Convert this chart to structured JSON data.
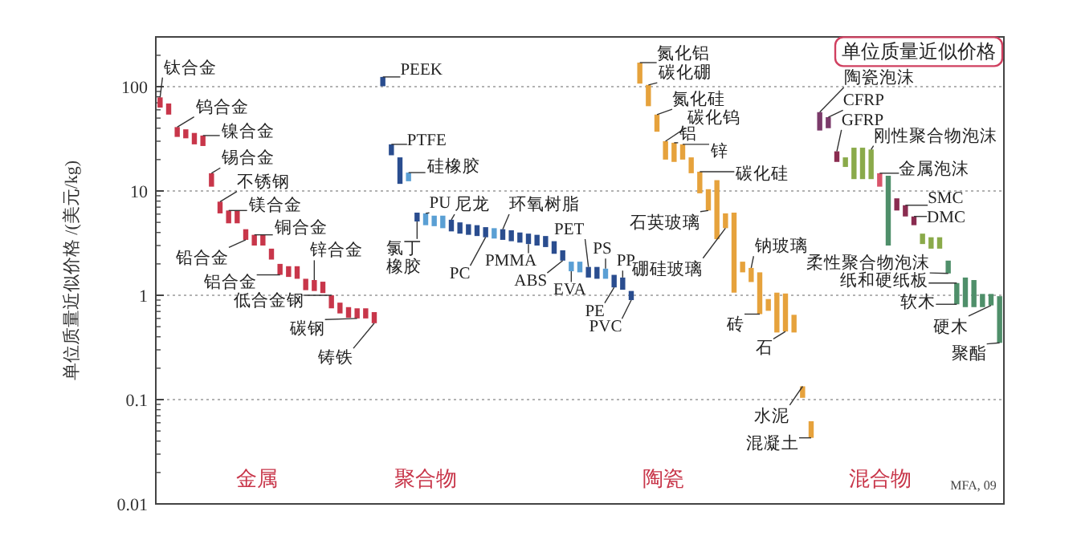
{
  "chart_data": {
    "type": "bar",
    "title": "单位质量近似价格",
    "ylabel": "单位质量近似价格 /(美元/kg)",
    "log": true,
    "ylim": [
      0.01,
      300
    ],
    "yticks": [
      0.01,
      0.1,
      1,
      10,
      100
    ],
    "tick_labels": "y",
    "grid": "y",
    "categories": [
      null,
      null,
      null,
      null,
      null,
      null,
      null,
      null,
      null,
      null,
      null,
      null,
      null,
      null,
      null,
      null,
      null,
      null,
      null,
      null,
      null,
      null,
      null,
      null,
      null,
      null,
      null,
      null,
      null,
      null,
      null,
      null,
      null,
      null,
      null,
      null,
      null,
      null,
      null,
      null,
      null,
      null,
      null,
      null,
      null,
      null,
      null,
      null,
      null,
      null,
      null,
      null,
      null,
      null,
      null,
      null,
      null,
      null,
      null,
      null,
      null,
      null,
      null,
      null,
      null,
      null,
      null,
      null,
      null,
      null,
      null,
      null,
      null,
      null,
      null,
      null,
      null,
      null,
      null,
      null,
      null,
      null,
      null,
      null,
      null,
      null,
      null,
      null,
      null,
      null,
      null,
      null,
      null,
      null,
      null,
      null,
      null,
      null,
      null
    ],
    "base": [
      63,
      54,
      33,
      32,
      28,
      27,
      11,
      6.1,
      4.9,
      4.9,
      3.4,
      3.0,
      3.0,
      2.2,
      1.57,
      1.5,
      1.44,
      1.12,
      1.1,
      1.05,
      0.75,
      0.67,
      0.61,
      0.6,
      0.6,
      0.54,
      101,
      22,
      11.7,
      12.4,
      5.1,
      4.7,
      4.6,
      4.4,
      4.1,
      3.9,
      3.8,
      3.7,
      3.6,
      3.5,
      3.4,
      3.3,
      3.2,
      3.1,
      3.0,
      2.9,
      2.5,
      2.15,
      1.7,
      1.66,
      1.48,
      1.44,
      1.44,
      1.19,
      1.13,
      0.9,
      107,
      65,
      37,
      20,
      19,
      20,
      14.8,
      9.5,
      6.5,
      3.45,
      4.4,
      1.06,
      1.66,
      1.34,
      0.66,
      0.71,
      0.44,
      0.45,
      0.44,
      0.104,
      0.043,
      38,
      40,
      19,
      17,
      13,
      13,
      13,
      11,
      3.0,
      6.5,
      5.7,
      4.7,
      3.1,
      2.8,
      2.8,
      1.62,
      0.82,
      0.77,
      0.77,
      0.77,
      0.8,
      0.35
    ],
    "values": [
      16,
      15,
      8,
      7,
      8,
      7,
      3.8,
      1.8,
      1.6,
      1.6,
      0.9,
      0.8,
      0.8,
      0.6,
      0.43,
      0.4,
      0.46,
      0.32,
      0.3,
      0.3,
      0.25,
      0.18,
      0.16,
      0.15,
      0.15,
      0.15,
      23,
      6,
      9.3,
      2.6,
      1.1,
      1.4,
      1.2,
      1.4,
      1.2,
      1.1,
      1.0,
      1.0,
      0.9,
      0.9,
      0.9,
      0.9,
      0.8,
      0.8,
      0.8,
      0.8,
      0.8,
      0.55,
      0.4,
      0.44,
      0.39,
      0.43,
      0.36,
      0.38,
      0.35,
      0.2,
      63,
      39,
      17,
      10,
      10,
      8,
      6.2,
      5.8,
      3.9,
      9.25,
      1.7,
      5.14,
      0.44,
      0.49,
      1.0,
      0.21,
      0.62,
      0.59,
      0.21,
      0.03,
      0.019,
      19,
      11,
      5,
      4,
      13,
      13,
      12,
      3.8,
      11,
      2,
      1.6,
      1.0,
      0.8,
      0.8,
      0.8,
      0.53,
      0.49,
      0.71,
      0.63,
      0.26,
      0.23,
      0.63
    ],
    "colors": [
      "#c8364a",
      "#c8364a",
      "#c8364a",
      "#c8364a",
      "#c8364a",
      "#c8364a",
      "#c8364a",
      "#c8364a",
      "#c8364a",
      "#c8364a",
      "#c8364a",
      "#c8364a",
      "#c8364a",
      "#c8364a",
      "#c8364a",
      "#c8364a",
      "#c8364a",
      "#c8364a",
      "#c8364a",
      "#c8364a",
      "#c8364a",
      "#c8364a",
      "#c8364a",
      "#c8364a",
      "#c8364a",
      "#c8364a",
      "#2a4d8f",
      "#2a4d8f",
      "#2a4d8f",
      "#5a9fd4",
      "#2a4d8f",
      "#5a9fd4",
      "#5a9fd4",
      "#5a9fd4",
      "#2a4d8f",
      "#2a4d8f",
      "#2a4d8f",
      "#2a4d8f",
      "#2a4d8f",
      "#5a9fd4",
      "#2a4d8f",
      "#2a4d8f",
      "#2a4d8f",
      "#2a4d8f",
      "#2a4d8f",
      "#2a4d8f",
      "#2a4d8f",
      "#2a4d8f",
      "#5a9fd4",
      "#5a9fd4",
      "#2a4d8f",
      "#2a4d8f",
      "#5a9fd4",
      "#2a4d8f",
      "#2a4d8f",
      "#2a4d8f",
      "#e6a23c",
      "#e6a23c",
      "#e6a23c",
      "#e6a23c",
      "#e6a23c",
      "#e6a23c",
      "#e6a23c",
      "#e6a23c",
      "#e6a23c",
      "#e6a23c",
      "#e6a23c",
      "#e6a23c",
      "#e6a23c",
      "#e6a23c",
      "#e6a23c",
      "#e6a23c",
      "#e6a23c",
      "#e6a23c",
      "#e6a23c",
      "#e6a23c",
      "#e6a23c",
      "#7b3a6a",
      "#7b3a6a",
      "#8a2c50",
      "#8aaa4a",
      "#8aaa4a",
      "#8aaa4a",
      "#8aaa4a",
      "#d9546a",
      "#4f8f6a",
      "#8a2c50",
      "#8a2c50",
      "#8a2c50",
      "#8aaa4a",
      "#8aaa4a",
      "#8aaa4a",
      "#4f8f6a",
      "#4f8f6a",
      "#4f8f6a",
      "#4f8f6a",
      "#4f8f6a",
      "#4f8f6a",
      "#4f8f6a"
    ],
    "annotations": [
      "钛合金",
      "钨合金",
      "镍合金",
      "锡合金",
      "不锈钢",
      "镁合金",
      "铜合金",
      "铅合金",
      "锌合金",
      "铝合金",
      "低合金钢",
      "碳钢",
      "铸铁",
      "PEEK",
      "PTFE",
      "硅橡胶",
      "PU",
      "尼龙",
      "环氧树脂",
      "氯丁橡胶",
      "PC",
      "PMMA",
      "ABS",
      "PET",
      "EVA",
      "PS",
      "PP",
      "PE",
      "PVC",
      "氮化铝",
      "碳化硼",
      "氮化硅",
      "碳化钨",
      "铝",
      "锌",
      "碳化硅",
      "石英玻璃",
      "硼硅玻璃",
      "钠玻璃",
      "砖",
      "石",
      "水泥",
      "混凝土",
      "陶瓷泡沫",
      "CFRP",
      "GFRP",
      "刚性聚合物泡沫",
      "金属泡沫",
      "SMC",
      "DMC",
      "柔性聚合物泡沫",
      "纸和硬纸板",
      "软木",
      "硬木",
      "聚酯",
      "金属",
      "聚合物",
      "陶瓷",
      "混合物",
      "MFA, 09"
    ]
  }
}
